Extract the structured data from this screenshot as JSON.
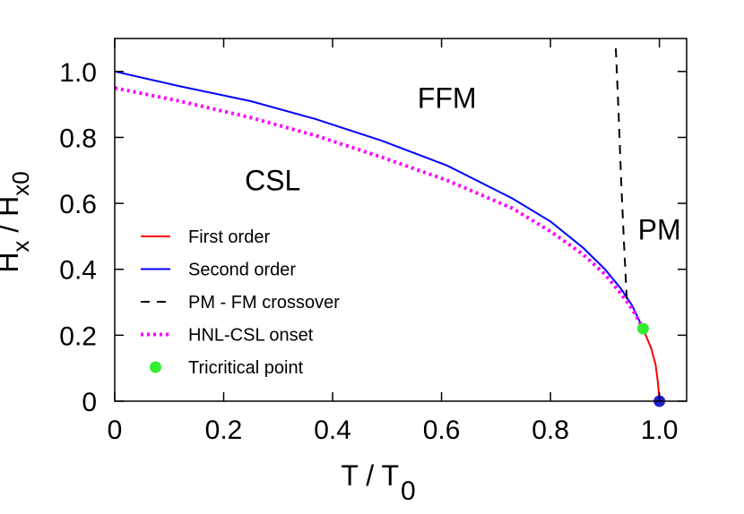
{
  "chart_data": {
    "type": "line",
    "xlabel": "T / T",
    "xlabel_sub": "0",
    "ylabel": "H / H",
    "ylabel_sub1": "x",
    "ylabel_sub2": "x0",
    "xlim": [
      0,
      1.05
    ],
    "ylim": [
      0,
      1.1
    ],
    "x_ticks": [
      0,
      0.2,
      0.4,
      0.6,
      0.8,
      1.0
    ],
    "x_tick_labels": [
      "0",
      "0.2",
      "0.4",
      "0.6",
      "0.8",
      "1.0"
    ],
    "y_ticks": [
      0,
      0.2,
      0.4,
      0.6,
      0.8,
      1.0
    ],
    "y_tick_labels": [
      "0",
      "0.2",
      "0.4",
      "0.6",
      "0.8",
      "1.0"
    ],
    "grid": false,
    "legend_position": "bottom-left",
    "region_labels": [
      {
        "text": "FFM",
        "x": 0.61,
        "y": 0.89
      },
      {
        "text": "CSL",
        "x": 0.29,
        "y": 0.64
      },
      {
        "text": "PM",
        "x": 1.0,
        "y": 0.49
      }
    ],
    "series": [
      {
        "name": "First order",
        "style": "solid",
        "color": "#ff0000",
        "x": [
          0.97,
          0.985,
          0.993,
          0.997,
          0.999,
          1.0
        ],
        "y": [
          0.22,
          0.16,
          0.11,
          0.06,
          0.025,
          0.0
        ]
      },
      {
        "name": "Second order",
        "style": "solid",
        "color": "#0000ff",
        "x": [
          0.0,
          0.12,
          0.25,
          0.37,
          0.49,
          0.61,
          0.73,
          0.8,
          0.86,
          0.9,
          0.93,
          0.95,
          0.97
        ],
        "y": [
          1.0,
          0.955,
          0.91,
          0.855,
          0.79,
          0.715,
          0.615,
          0.545,
          0.465,
          0.4,
          0.34,
          0.29,
          0.22
        ]
      },
      {
        "name": "PM - FM crossover",
        "style": "dashed",
        "color": "#000000",
        "x": [
          0.92,
          0.925,
          0.93,
          0.935,
          0.94
        ],
        "y": [
          1.07,
          0.88,
          0.66,
          0.48,
          0.31
        ]
      },
      {
        "name": "HNL-CSL onset",
        "style": "dotted",
        "color": "#ff00ff",
        "x": [
          0.0,
          0.12,
          0.25,
          0.37,
          0.49,
          0.61,
          0.73,
          0.8,
          0.86,
          0.9,
          0.93,
          0.95,
          0.97
        ],
        "y": [
          0.95,
          0.91,
          0.86,
          0.805,
          0.74,
          0.67,
          0.585,
          0.515,
          0.445,
          0.385,
          0.325,
          0.28,
          0.22
        ]
      }
    ],
    "points": [
      {
        "name": "Tricritical point",
        "color": "#33ee33",
        "x": 0.97,
        "y": 0.22
      },
      {
        "name": "",
        "color": "#2020d0",
        "x": 1.0,
        "y": 0.0
      }
    ]
  }
}
